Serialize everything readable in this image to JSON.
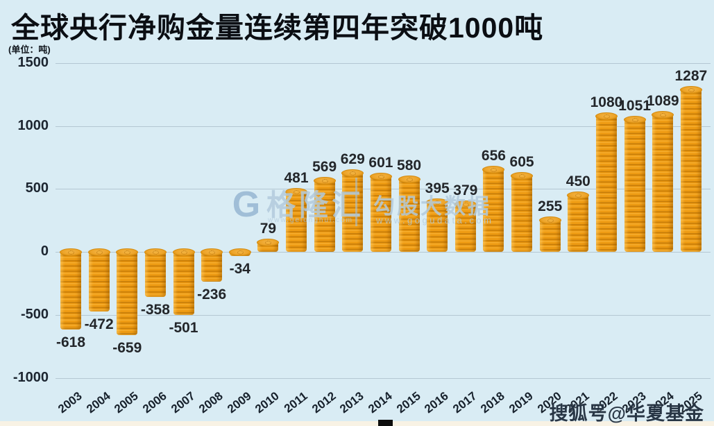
{
  "title": "全球央行净购金量连续第四年突破1000吨",
  "unit_label": "(单位：吨)",
  "chart_data": {
    "type": "bar",
    "title": "全球央行净购金量连续第四年突破1000吨",
    "ylabel": "吨",
    "categories": [
      "2003",
      "2004",
      "2005",
      "2006",
      "2007",
      "2008",
      "2009",
      "2010",
      "2011",
      "2012",
      "2013",
      "2014",
      "2015",
      "2016",
      "2017",
      "2018",
      "2019",
      "2020",
      "2021",
      "2022",
      "2023",
      "2024",
      "2025"
    ],
    "values": [
      -618,
      -472,
      -659,
      -358,
      -501,
      -236,
      -34,
      79,
      481,
      569,
      629,
      601,
      580,
      395,
      379,
      656,
      605,
      255,
      450,
      1080,
      1051,
      1089,
      1287
    ],
    "ylim": [
      -1000,
      1500
    ],
    "yticks": [
      1500,
      1000,
      500,
      0,
      -500,
      -1000
    ],
    "grid": true,
    "bar_style": "gold-coin-stack",
    "legend": null
  },
  "watermarks": {
    "gelonghui": {
      "logo": "G",
      "name": "格隆汇",
      "url": "www.gelonghui.com"
    },
    "gougu": {
      "name": "勾股大数据",
      "url": "www.gogudata.com"
    },
    "sohu": "搜狐号@华夏基金"
  },
  "colors": {
    "background": "#d9ecf4",
    "title_text": "#0b0e13",
    "axis_text": "#1c2530",
    "value_label_text": "#23262a",
    "gridline": "#96aab6",
    "coin_body": "#ee9b13",
    "coin_ridge": "#c77d09",
    "coin_highlight": "#f7ae2e",
    "coin_top": "#eda42a",
    "watermark_text": "#b2cadc",
    "sohu_text": "#182635",
    "bottom_strip": "#f8f2e4"
  }
}
